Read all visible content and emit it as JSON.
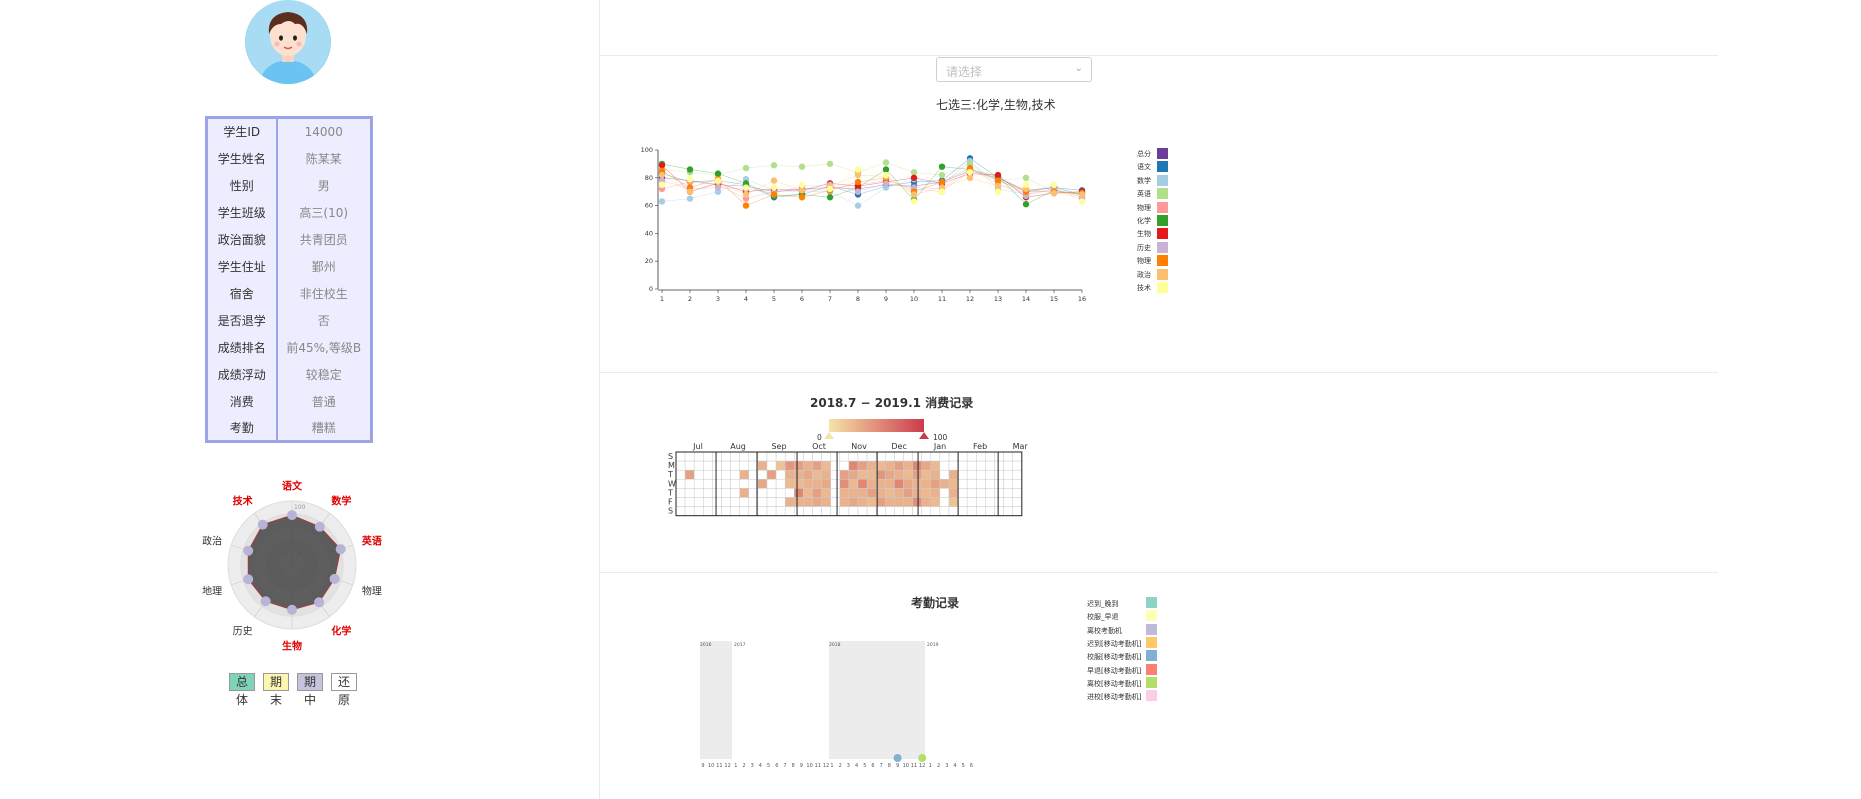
{
  "student": {
    "rows": [
      {
        "label": "学生ID",
        "value": "14000"
      },
      {
        "label": "学生姓名",
        "value": "陈某某"
      },
      {
        "label": "性别",
        "value": "男"
      },
      {
        "label": "学生班级",
        "value": "高三(10)"
      },
      {
        "label": "政治面貌",
        "value": "共青团员"
      },
      {
        "label": "学生住址",
        "value": "鄞州"
      },
      {
        "label": "宿舍",
        "value": "非住校生"
      },
      {
        "label": "是否退学",
        "value": "否"
      },
      {
        "label": "成绩排名",
        "value": "前45%,等级B"
      },
      {
        "label": "成绩浮动",
        "value": "较稳定"
      },
      {
        "label": "消费",
        "value": "普通"
      },
      {
        "label": "考勤",
        "value": "糟糕"
      }
    ]
  },
  "radar": {
    "axes": [
      {
        "label": "语文",
        "highlight": true
      },
      {
        "label": "数学",
        "highlight": true
      },
      {
        "label": "英语",
        "highlight": true
      },
      {
        "label": "物理",
        "highlight": false
      },
      {
        "label": "化学",
        "highlight": true
      },
      {
        "label": "生物",
        "highlight": true
      },
      {
        "label": "历史",
        "highlight": false
      },
      {
        "label": "地理",
        "highlight": false
      },
      {
        "label": "政治",
        "highlight": false
      },
      {
        "label": "技术",
        "highlight": true
      }
    ],
    "tick": "100",
    "values": [
      78,
      74,
      80,
      70,
      72,
      70,
      70,
      72,
      72,
      78
    ]
  },
  "buttons": [
    {
      "top": "总",
      "bottom": "体",
      "color": "#7fd3b9"
    },
    {
      "top": "期",
      "bottom": "末",
      "color": "#fcf6b1"
    },
    {
      "top": "期",
      "bottom": "中",
      "color": "#c6c3df"
    },
    {
      "top": "还",
      "bottom": "原",
      "color": "#ffffff"
    }
  ],
  "select": {
    "placeholder": "请选择"
  },
  "chart_data": [
    {
      "type": "scatter",
      "title": "七选三:化学,生物,技术",
      "x": [
        1,
        2,
        3,
        4,
        5,
        6,
        7,
        8,
        9,
        10,
        11,
        12,
        13,
        14,
        15,
        16
      ],
      "ylim": [
        0,
        100
      ],
      "yticks": [
        0,
        20,
        40,
        60,
        80,
        100
      ],
      "series": [
        {
          "name": "总分",
          "color": "#6a3d9a",
          "values": [
            80,
            78,
            75,
            74,
            70,
            72,
            73,
            72,
            75,
            74,
            77,
            85,
            80,
            71,
            73,
            68
          ]
        },
        {
          "name": "语文",
          "color": "#1f78b4",
          "values": [
            83,
            77,
            78,
            75,
            66,
            68,
            74,
            68,
            74,
            77,
            78,
            94,
            80,
            70,
            73,
            71
          ]
        },
        {
          "name": "数学",
          "color": "#a6cee3",
          "values": [
            63,
            65,
            70,
            79,
            71,
            70,
            70,
            60,
            73,
            79,
            75,
            92,
            72,
            68,
            75,
            65
          ]
        },
        {
          "name": "英语",
          "color": "#b2df8a",
          "values": [
            86,
            84,
            82,
            87,
            89,
            88,
            90,
            84,
            91,
            84,
            82,
            90,
            78,
            80,
            70,
            68
          ]
        },
        {
          "name": "物理",
          "color": "#fb9a99",
          "values": [
            72,
            77,
            75,
            65,
            70,
            71,
            72,
            75,
            78,
            72,
            70,
            85,
            79,
            68,
            72,
            64
          ]
        },
        {
          "name": "化学",
          "color": "#33a02c",
          "values": [
            90,
            86,
            83,
            76,
            67,
            68,
            66,
            73,
            86,
            64,
            88,
            86,
            81,
            61,
            71,
            68
          ]
        },
        {
          "name": "生物",
          "color": "#e31a1c",
          "values": [
            89,
            70,
            76,
            70,
            72,
            71,
            76,
            74,
            77,
            80,
            76,
            83,
            82,
            66,
            69,
            70
          ]
        },
        {
          "name": "历史",
          "color": "#cab2d6",
          "values": [
            78,
            72,
            73,
            72,
            69,
            74,
            75,
            70,
            76,
            73,
            72,
            86,
            76,
            67,
            72,
            66
          ]
        },
        {
          "name": "物理",
          "color": "#ff7f00",
          "values": [
            85,
            73,
            79,
            60,
            68,
            66,
            71,
            77,
            80,
            70,
            77,
            87,
            78,
            70,
            70,
            69
          ]
        },
        {
          "name": "政治",
          "color": "#fdbf6f",
          "values": [
            82,
            70,
            77,
            68,
            78,
            71,
            74,
            82,
            81,
            68,
            73,
            80,
            74,
            72,
            69,
            68
          ]
        },
        {
          "name": "技术",
          "color": "#ffff99",
          "values": [
            75,
            79,
            78,
            73,
            73,
            75,
            72,
            86,
            82,
            63,
            70,
            84,
            70,
            75,
            75,
            63
          ]
        }
      ]
    },
    {
      "type": "heatmap",
      "title": "2018.7 − 2019.1 消费记录",
      "months": [
        "Jul",
        "Aug",
        "Sep",
        "Oct",
        "Nov",
        "Dec",
        "Jan",
        "Feb",
        "Mar"
      ],
      "days": [
        "S",
        "M",
        "T",
        "W",
        "T",
        "F",
        "S"
      ],
      "scale_min": "0",
      "scale_max": "100",
      "color_low": "#f6e3a8",
      "color_high": "#cc3b4c",
      "weeks": 38,
      "start_week_values": [
        [
          0,
          0,
          0,
          0,
          0,
          0,
          0
        ],
        [
          0,
          0,
          40,
          0,
          0,
          0,
          0
        ],
        [
          0,
          0,
          0,
          0,
          0,
          0,
          0
        ],
        [
          0,
          0,
          0,
          0,
          0,
          0,
          0
        ],
        [
          0,
          0,
          0,
          0,
          0,
          0,
          0
        ],
        [
          0,
          0,
          0,
          0,
          0,
          0,
          0
        ],
        [
          0,
          0,
          0,
          0,
          0,
          0,
          0
        ],
        [
          0,
          0,
          30,
          0,
          30,
          0,
          0
        ],
        [
          0,
          0,
          0,
          0,
          0,
          0,
          0
        ],
        [
          0,
          30,
          0,
          35,
          0,
          0,
          0
        ],
        [
          0,
          0,
          40,
          0,
          0,
          0,
          0
        ],
        [
          0,
          20,
          0,
          0,
          0,
          0,
          0
        ],
        [
          0,
          45,
          30,
          25,
          0,
          30,
          0
        ],
        [
          0,
          40,
          30,
          25,
          55,
          30,
          0
        ],
        [
          0,
          30,
          35,
          30,
          25,
          30,
          0
        ],
        [
          0,
          40,
          25,
          30,
          40,
          35,
          0
        ],
        [
          0,
          25,
          30,
          35,
          25,
          30,
          0
        ],
        [
          0,
          0,
          0,
          0,
          0,
          0,
          0
        ],
        [
          0,
          0,
          40,
          50,
          30,
          30,
          0
        ],
        [
          0,
          55,
          35,
          25,
          30,
          35,
          0
        ],
        [
          0,
          40,
          25,
          55,
          30,
          30,
          0
        ],
        [
          0,
          30,
          25,
          30,
          40,
          25,
          0
        ],
        [
          0,
          25,
          45,
          30,
          30,
          40,
          0
        ],
        [
          0,
          30,
          35,
          30,
          25,
          30,
          0
        ],
        [
          0,
          40,
          30,
          55,
          30,
          30,
          0
        ],
        [
          0,
          30,
          25,
          35,
          40,
          30,
          0
        ],
        [
          0,
          55,
          40,
          30,
          30,
          50,
          0
        ],
        [
          0,
          35,
          25,
          30,
          25,
          30,
          0
        ],
        [
          0,
          25,
          30,
          40,
          30,
          25,
          0
        ],
        [
          0,
          0,
          0,
          30,
          0,
          0,
          0
        ],
        [
          0,
          0,
          30,
          25,
          30,
          20,
          0
        ],
        [
          0,
          0,
          0,
          0,
          0,
          0,
          0
        ],
        [
          0,
          0,
          0,
          0,
          0,
          0,
          0
        ],
        [
          0,
          0,
          0,
          0,
          0,
          0,
          0
        ],
        [
          0,
          0,
          0,
          0,
          0,
          0,
          0
        ],
        [
          0,
          0,
          0,
          0,
          0,
          0,
          0
        ],
        [
          0,
          0,
          0,
          0,
          0,
          0,
          0
        ],
        [
          0,
          0,
          0,
          0,
          0,
          0,
          0
        ]
      ]
    },
    {
      "type": "scatter",
      "title": "考勤记录",
      "groups": [
        {
          "year_left": "2016",
          "year_right": "2017",
          "ticks": [
            "9",
            "10",
            "11",
            "12",
            "1",
            "2",
            "3",
            "4",
            "5",
            "6",
            "7",
            "8",
            "9",
            "10",
            "11",
            "12"
          ]
        },
        {
          "year_left": "2018",
          "year_right": "2019",
          "ticks": [
            "1",
            "2",
            "3",
            "4",
            "5",
            "6",
            "7",
            "8",
            "9",
            "10",
            "11",
            "12",
            "1",
            "2",
            "3",
            "4",
            "5",
            "6"
          ]
        }
      ],
      "legend": [
        {
          "name": "迟到_晚到",
          "color": "#8dd3c7"
        },
        {
          "name": "校服_早退",
          "color": "#ffffb3"
        },
        {
          "name": "离校考勤机",
          "color": "#bebada"
        },
        {
          "name": "迟到[移动考勤机]",
          "color": "#fdc869"
        },
        {
          "name": "校服[移动考勤机]",
          "color": "#80b1d3"
        },
        {
          "name": "早退[移动考勤机]",
          "color": "#fb8072"
        },
        {
          "name": "离校[移动考勤机]",
          "color": "#b3de69"
        },
        {
          "name": "进校[移动考勤机]",
          "color": "#fccde5"
        }
      ],
      "points": [
        {
          "group": 1,
          "month": "9",
          "category": "校服[移动考勤机]"
        },
        {
          "group": 1,
          "month": "12",
          "category": "离校[移动考勤机]"
        }
      ]
    }
  ]
}
